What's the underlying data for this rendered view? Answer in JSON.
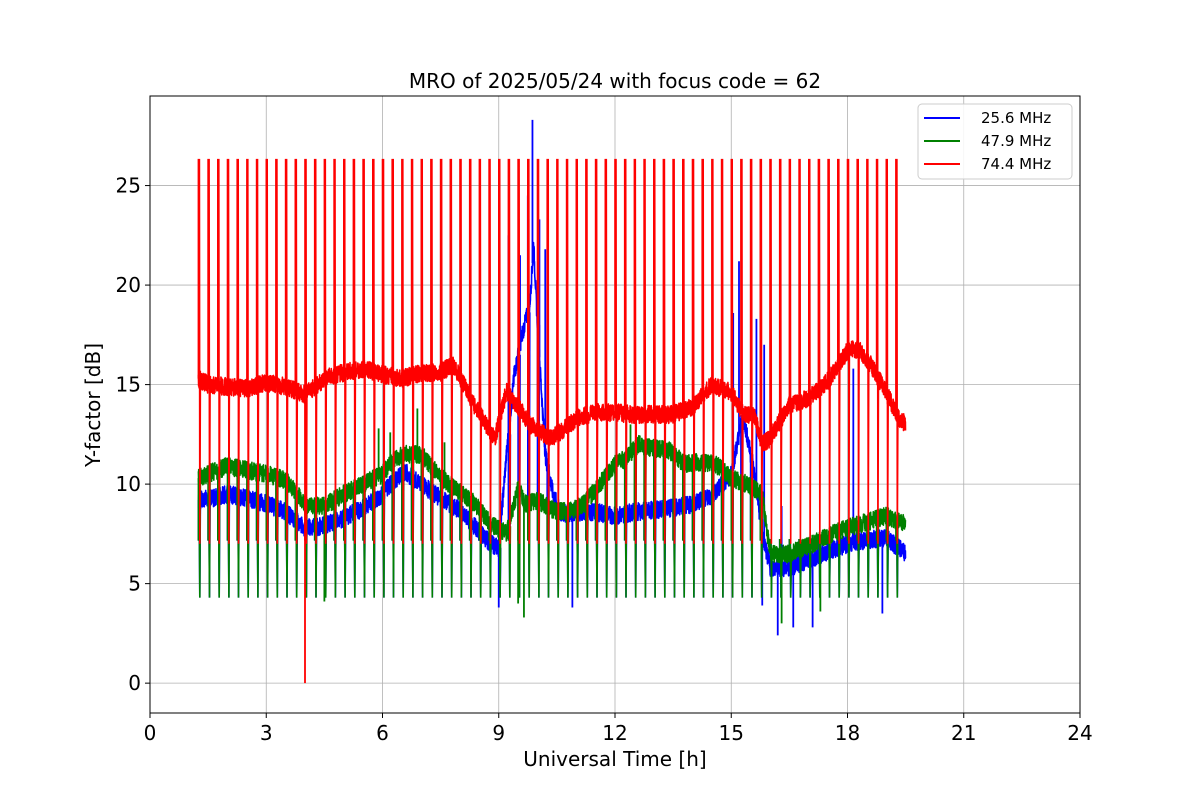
{
  "chart_data": {
    "type": "line",
    "title": "MRO of 2025/05/24 with focus code = 62",
    "xlabel": "Universal Time [h]",
    "ylabel": "Y-factor [dB]",
    "xlim": [
      0,
      24
    ],
    "ylim": [
      -1.5,
      29.5
    ],
    "xticks": [
      0,
      3,
      6,
      9,
      12,
      15,
      18,
      21,
      24
    ],
    "yticks": [
      0,
      5,
      10,
      15,
      20,
      25
    ],
    "grid": true,
    "legend_position": "top-right",
    "pulse_times_h": [
      1.25,
      1.5,
      1.75,
      2.0,
      2.25,
      2.5,
      2.75,
      3.0,
      3.25,
      3.5,
      3.75,
      4.0,
      4.25,
      4.5,
      4.75,
      5.0,
      5.25,
      5.5,
      5.75,
      6.0,
      6.25,
      6.5,
      6.75,
      7.0,
      7.25,
      7.5,
      7.75,
      8.0,
      8.25,
      8.5,
      8.75,
      9.0,
      9.25,
      9.5,
      9.75,
      10.0,
      10.25,
      10.5,
      10.75,
      11.0,
      11.25,
      11.5,
      11.75,
      12.0,
      12.25,
      12.5,
      12.75,
      13.0,
      13.25,
      13.5,
      13.75,
      14.0,
      14.25,
      14.5,
      14.75,
      15.0,
      15.25,
      15.5,
      15.75,
      16.0,
      16.25,
      16.5,
      16.75,
      17.0,
      17.25,
      17.5,
      17.75,
      18.0,
      18.25,
      18.5,
      18.75,
      19.0,
      19.25
    ],
    "series": [
      {
        "name": "25.6 MHz",
        "color": "#0000ff",
        "pulse_high": 7.2,
        "pulse_low": 4.3,
        "x": [
          1.25,
          1.6,
          2.0,
          2.5,
          3.0,
          3.5,
          4.0,
          4.5,
          5.0,
          5.5,
          6.0,
          6.3,
          6.6,
          7.0,
          7.5,
          8.0,
          8.5,
          8.8,
          9.0,
          9.2,
          9.4,
          9.6,
          9.8,
          9.9,
          10.0,
          10.2,
          10.4,
          10.6,
          11.0,
          11.5,
          12.0,
          12.5,
          13.0,
          13.5,
          14.0,
          14.5,
          15.0,
          15.3,
          15.6,
          15.8,
          16.0,
          16.5,
          17.0,
          17.5,
          18.0,
          18.5,
          19.0,
          19.5
        ],
        "y": [
          9.2,
          9.3,
          9.5,
          9.3,
          9.0,
          8.6,
          7.8,
          7.9,
          8.3,
          8.8,
          9.5,
          10.2,
          10.6,
          10.0,
          9.3,
          8.7,
          7.6,
          7.0,
          6.8,
          11.5,
          15.5,
          17.5,
          19.0,
          22.0,
          18.0,
          11.5,
          9.5,
          8.5,
          8.6,
          8.6,
          8.4,
          8.6,
          8.7,
          8.8,
          9.0,
          9.4,
          10.5,
          13.5,
          10.5,
          7.5,
          5.8,
          5.8,
          6.2,
          6.6,
          7.0,
          7.2,
          7.3,
          6.5
        ],
        "spikes": [
          [
            9.25,
            22.5
          ],
          [
            9.55,
            21.5
          ],
          [
            9.75,
            24.5
          ],
          [
            9.87,
            28.3
          ],
          [
            10.05,
            23.3
          ],
          [
            10.2,
            21.8
          ],
          [
            15.2,
            21.2
          ],
          [
            15.05,
            18.6
          ],
          [
            15.65,
            18.3
          ],
          [
            15.85,
            17.0
          ],
          [
            16.3,
            8.9
          ],
          [
            18.15,
            15.8
          ]
        ],
        "dips": [
          [
            9.0,
            3.8
          ],
          [
            10.9,
            3.8
          ],
          [
            15.8,
            3.9
          ],
          [
            16.2,
            2.4
          ],
          [
            16.6,
            2.8
          ],
          [
            17.1,
            2.8
          ],
          [
            18.9,
            3.5
          ]
        ]
      },
      {
        "name": "47.9 MHz",
        "color": "#008000",
        "pulse_high": 7.2,
        "pulse_low": 4.3,
        "x": [
          1.25,
          1.6,
          2.0,
          2.5,
          3.0,
          3.5,
          4.0,
          4.5,
          5.0,
          5.5,
          6.0,
          6.3,
          6.6,
          7.0,
          7.3,
          7.6,
          8.0,
          8.4,
          8.8,
          9.2,
          9.5,
          9.7,
          10.0,
          10.4,
          10.8,
          11.2,
          11.6,
          12.0,
          12.3,
          12.6,
          13.0,
          13.4,
          13.8,
          14.2,
          14.6,
          15.0,
          15.4,
          15.8,
          16.0,
          16.5,
          17.0,
          17.5,
          18.0,
          18.5,
          19.0,
          19.5
        ],
        "y": [
          10.3,
          10.6,
          10.9,
          10.7,
          10.5,
          10.2,
          9.0,
          8.9,
          9.5,
          10.0,
          10.5,
          11.3,
          11.5,
          11.5,
          10.8,
          10.2,
          9.6,
          9.0,
          8.0,
          7.5,
          9.8,
          9.0,
          9.2,
          8.7,
          8.6,
          9.0,
          10.0,
          11.0,
          11.3,
          12.0,
          11.8,
          11.7,
          11.0,
          11.1,
          11.0,
          10.3,
          10.0,
          9.5,
          6.5,
          6.5,
          6.9,
          7.4,
          7.8,
          8.1,
          8.4,
          8.0
        ],
        "spikes": [
          [
            6.9,
            13.8
          ],
          [
            5.9,
            12.8
          ],
          [
            6.2,
            12.6
          ],
          [
            7.6,
            12.1
          ],
          [
            12.4,
            13.0
          ]
        ],
        "dips": [
          [
            4.5,
            4.1
          ],
          [
            9.5,
            4.0
          ],
          [
            9.65,
            3.3
          ],
          [
            16.3,
            3.0
          ],
          [
            17.3,
            3.6
          ]
        ]
      },
      {
        "name": "74.4 MHz",
        "color": "#ff0000",
        "pulse_high": 26.3,
        "pulse_low": 7.0,
        "x": [
          1.25,
          1.5,
          2.0,
          2.5,
          3.0,
          3.5,
          4.0,
          4.5,
          5.0,
          5.5,
          6.0,
          6.5,
          7.0,
          7.5,
          7.8,
          8.0,
          8.3,
          8.6,
          8.9,
          9.2,
          9.5,
          9.8,
          10.0,
          10.3,
          10.6,
          11.0,
          11.5,
          12.0,
          12.5,
          13.0,
          13.5,
          14.0,
          14.5,
          15.0,
          15.3,
          15.6,
          15.8,
          16.0,
          16.5,
          17.0,
          17.5,
          18.0,
          18.3,
          18.6,
          19.0,
          19.3,
          19.5
        ],
        "y": [
          15.3,
          15.0,
          14.9,
          14.8,
          15.1,
          14.9,
          14.5,
          15.3,
          15.6,
          15.8,
          15.5,
          15.3,
          15.6,
          15.6,
          16.0,
          15.4,
          14.2,
          13.2,
          12.3,
          14.7,
          13.9,
          13.0,
          12.8,
          12.3,
          12.6,
          13.3,
          13.6,
          13.6,
          13.5,
          13.5,
          13.5,
          13.9,
          15.0,
          14.6,
          13.6,
          13.4,
          12.0,
          12.3,
          14.0,
          14.3,
          15.2,
          16.7,
          16.8,
          16.0,
          14.6,
          13.4,
          13.0
        ],
        "spikes": [],
        "dips": [
          [
            4.0,
            0.0
          ]
        ]
      }
    ]
  }
}
